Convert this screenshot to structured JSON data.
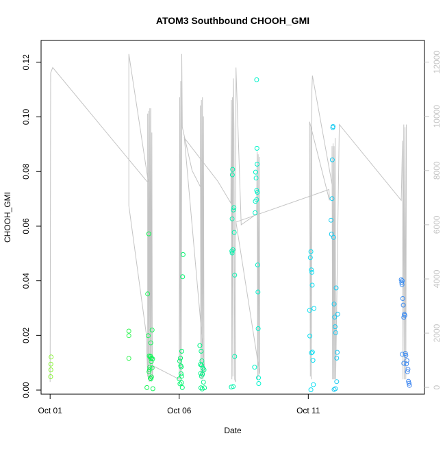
{
  "chart_data": {
    "type": "scatter",
    "title": "ATOM3 Southbound CHOOH_GMI",
    "xlabel": "Date",
    "ylabel": "CHOOH_GMI",
    "x_ticks": [
      "Oct 01",
      "Oct 06",
      "Oct 11"
    ],
    "x_tick_values": [
      0,
      5,
      10
    ],
    "xlim": [
      -0.35,
      14.5
    ],
    "y_ticks": [
      "0.00",
      "0.02",
      "0.04",
      "0.06",
      "0.08",
      "0.10",
      "0.12"
    ],
    "y_tick_values": [
      0,
      0.02,
      0.04,
      0.06,
      0.08,
      0.1,
      0.12
    ],
    "ylim": [
      -0.0015,
      0.128
    ],
    "y2_ticks": [
      "0",
      "2000",
      "4000",
      "6000",
      "8000",
      "10000",
      "12000"
    ],
    "y2_tick_values": [
      0,
      2000,
      4000,
      6000,
      8000,
      10000,
      12000
    ],
    "y2lim": [
      -250,
      12800
    ],
    "grid": false,
    "colors": {
      "line": "#c4c4c4",
      "axis": "#000000",
      "secondary_axis": "#c4c4c4",
      "marker_gradient": [
        "#8cf53a",
        "#00f560",
        "#00f2f2",
        "#3f86f0"
      ]
    },
    "series": [
      {
        "values": [
          [
            0.02,
            0.0049
          ],
          [
            0.03,
            0.0074
          ],
          [
            0.03,
            0.0095
          ],
          [
            0.04,
            0.0121
          ]
        ]
      },
      {
        "values": [
          [
            3.05,
            0.0216
          ],
          [
            3.05,
            0.0199
          ],
          [
            3.05,
            0.0116
          ]
        ]
      },
      {
        "values": [
          [
            3.75,
            0.0009
          ],
          [
            3.78,
            0.0352
          ],
          [
            3.8,
            0.0199
          ],
          [
            3.82,
            0.0572
          ],
          [
            3.83,
            0.0067
          ],
          [
            3.84,
            0.0125
          ],
          [
            3.86,
            0.0084
          ],
          [
            3.87,
            0.0121
          ],
          [
            3.88,
            0.0044
          ],
          [
            3.9,
            0.0173
          ],
          [
            3.9,
            0.0041
          ],
          [
            3.92,
            0.0104
          ],
          [
            3.93,
            0.0117
          ],
          [
            3.95,
            0.022
          ],
          [
            3.95,
            0.0081
          ],
          [
            3.97,
            0.0114
          ],
          [
            3.98,
            0.0005
          ],
          [
            3.85,
            0.0074
          ],
          [
            3.89,
            0.0124
          ],
          [
            3.91,
            0.0115
          ],
          [
            3.93,
            0.0048
          ]
        ]
      },
      {
        "values": [
          [
            5.0,
            0.0041
          ],
          [
            5.02,
            0.0106
          ],
          [
            5.03,
            0.0023
          ],
          [
            5.05,
            0.0117
          ],
          [
            5.07,
            0.006
          ],
          [
            5.08,
            0.0085
          ],
          [
            5.1,
            0.0142
          ],
          [
            5.1,
            0.0051
          ],
          [
            5.12,
            0.0009
          ],
          [
            5.13,
            0.0415
          ],
          [
            5.15,
            0.0496
          ],
          [
            5.06,
            0.0089
          ],
          [
            5.09,
            0.0027
          ]
        ]
      },
      {
        "values": [
          [
            5.8,
            0.0163
          ],
          [
            5.82,
            0.0094
          ],
          [
            5.84,
            0.0008
          ],
          [
            5.85,
            0.0142
          ],
          [
            5.86,
            0.0051
          ],
          [
            5.87,
            0.0091
          ],
          [
            5.88,
            0.0107
          ],
          [
            5.9,
            0.0058
          ],
          [
            5.92,
            0.008
          ],
          [
            5.94,
            0.0029
          ],
          [
            5.96,
            0.0074
          ],
          [
            5.98,
            0.0008
          ],
          [
            5.83,
            0.0061
          ],
          [
            5.89,
            0.0004
          ]
        ]
      },
      {
        "values": [
          [
            7.02,
            0.0011
          ],
          [
            7.04,
            0.0509
          ],
          [
            7.05,
            0.0627
          ],
          [
            7.06,
            0.0788
          ],
          [
            7.07,
            0.0808
          ],
          [
            7.08,
            0.0514
          ],
          [
            7.1,
            0.0659
          ],
          [
            7.12,
            0.0668
          ],
          [
            7.13,
            0.0577
          ],
          [
            7.15,
            0.0421
          ],
          [
            7.15,
            0.0123
          ],
          [
            7.05,
            0.0502
          ],
          [
            7.09,
            0.0013
          ]
        ]
      },
      {
        "values": [
          [
            7.92,
            0.0084
          ],
          [
            7.94,
            0.0649
          ],
          [
            7.95,
            0.0691
          ],
          [
            7.96,
            0.0798
          ],
          [
            7.98,
            0.0776
          ],
          [
            8.0,
            0.0731
          ],
          [
            8.01,
            0.0885
          ],
          [
            8.02,
            0.0827
          ],
          [
            8.03,
            0.0724
          ],
          [
            8.04,
            0.0458
          ],
          [
            8.05,
            0.0359
          ],
          [
            8.06,
            0.0225
          ],
          [
            8.07,
            0.0045
          ],
          [
            8.08,
            0.0024
          ],
          [
            8.0,
            0.1136
          ],
          [
            8.0,
            0.0697
          ]
        ]
      },
      {
        "values": [
          [
            10.05,
            0.0292
          ],
          [
            10.06,
            0.0198
          ],
          [
            10.08,
            0.0485
          ],
          [
            10.1,
            0.0507
          ],
          [
            10.12,
            0.044
          ],
          [
            10.14,
            0.0431
          ],
          [
            10.15,
            0.0384
          ],
          [
            10.16,
            0.0139
          ],
          [
            10.18,
            0.0109
          ],
          [
            10.2,
            0.002
          ],
          [
            10.22,
            0.0299
          ],
          [
            10.1,
            0.0001
          ],
          [
            10.12,
            0.0136
          ]
        ]
      },
      {
        "values": [
          [
            10.88,
            0.0622
          ],
          [
            10.9,
            0.0571
          ],
          [
            10.92,
            0.0701
          ],
          [
            10.93,
            0.0843
          ],
          [
            10.95,
            0.0961
          ],
          [
            10.96,
            0.0965
          ],
          [
            10.98,
            0.0559
          ],
          [
            11.0,
            0.0315
          ],
          [
            11.02,
            0.0267
          ],
          [
            11.04,
            0.0232
          ],
          [
            11.06,
            0.021
          ],
          [
            11.08,
            0.0374
          ],
          [
            11.1,
            0.0117
          ],
          [
            11.12,
            0.0138
          ],
          [
            11.14,
            0.0278
          ],
          [
            11.1,
            0.0031
          ],
          [
            11.0,
            0.0002
          ],
          [
            11.05,
            0.0005
          ]
        ]
      },
      {
        "values": [
          [
            13.6,
            0.0404
          ],
          [
            13.62,
            0.0394
          ],
          [
            13.63,
            0.0386
          ],
          [
            13.64,
            0.04
          ],
          [
            13.66,
            0.0335
          ],
          [
            13.68,
            0.0311
          ],
          [
            13.7,
            0.0266
          ],
          [
            13.72,
            0.0278
          ],
          [
            13.74,
            0.0273
          ],
          [
            13.76,
            0.0134
          ],
          [
            13.78,
            0.0127
          ],
          [
            13.8,
            0.0096
          ],
          [
            13.82,
            0.0108
          ],
          [
            13.84,
            0.0067
          ],
          [
            13.86,
            0.0076
          ],
          [
            13.88,
            0.0032
          ],
          [
            13.9,
            0.0025
          ],
          [
            13.92,
            0.0017
          ],
          [
            13.64,
            0.0131
          ],
          [
            13.7,
            0.0098
          ]
        ]
      }
    ],
    "altitude_track": {
      "note": "",
      "points": [
        [
          0.0,
          200
        ],
        [
          0.02,
          11600
        ],
        [
          0.1,
          11800
        ],
        [
          3.75,
          7600
        ],
        [
          3.8,
          7600
        ],
        [
          3.05,
          12300
        ],
        [
          3.05,
          6700
        ],
        [
          3.72,
          2000
        ],
        [
          3.78,
          400
        ],
        [
          3.78,
          10100
        ],
        [
          3.8,
          300
        ],
        [
          3.82,
          10200
        ],
        [
          3.84,
          200
        ],
        [
          3.86,
          10300
        ],
        [
          3.88,
          300
        ],
        [
          3.9,
          10300
        ],
        [
          3.92,
          200
        ],
        [
          3.94,
          9400
        ],
        [
          3.96,
          300
        ],
        [
          3.98,
          800
        ],
        [
          5.0,
          300
        ],
        [
          5.02,
          10700
        ],
        [
          5.04,
          300
        ],
        [
          5.06,
          11300
        ],
        [
          5.08,
          500
        ],
        [
          5.1,
          12300
        ],
        [
          5.12,
          9600
        ],
        [
          5.5,
          8000
        ],
        [
          5.82,
          7400
        ],
        [
          5.82,
          10400
        ],
        [
          5.84,
          300
        ],
        [
          5.86,
          10600
        ],
        [
          5.88,
          300
        ],
        [
          5.9,
          10700
        ],
        [
          5.92,
          300
        ],
        [
          5.94,
          10000
        ],
        [
          5.96,
          400
        ],
        [
          5.98,
          800
        ],
        [
          5.2,
          9200
        ],
        [
          6.5,
          7600
        ],
        [
          7.0,
          6800
        ],
        [
          7.02,
          10600
        ],
        [
          7.04,
          300
        ],
        [
          7.06,
          10700
        ],
        [
          7.08,
          400
        ],
        [
          7.1,
          11400
        ],
        [
          7.12,
          9600
        ],
        [
          7.15,
          300
        ],
        [
          7.18,
          200
        ],
        [
          7.2,
          11800
        ],
        [
          7.4,
          6000
        ],
        [
          8.0,
          6400
        ],
        [
          8.02,
          8700
        ],
        [
          8.04,
          300
        ],
        [
          8.06,
          8600
        ],
        [
          8.08,
          400
        ],
        [
          8.1,
          8500
        ],
        [
          8.12,
          500
        ],
        [
          7.2,
          6100
        ],
        [
          10.8,
          7300
        ],
        [
          10.82,
          6900
        ],
        [
          10.05,
          9800
        ],
        [
          10.08,
          400
        ],
        [
          10.1,
          9600
        ],
        [
          10.12,
          300
        ],
        [
          10.14,
          11000
        ],
        [
          10.16,
          11500
        ],
        [
          10.2,
          11300
        ],
        [
          10.92,
          7500
        ],
        [
          10.92,
          8900
        ],
        [
          10.94,
          300
        ],
        [
          10.96,
          9000
        ],
        [
          10.98,
          300
        ],
        [
          11.0,
          8900
        ],
        [
          11.02,
          300
        ],
        [
          11.04,
          9200
        ],
        [
          11.06,
          300
        ],
        [
          11.2,
          9700
        ],
        [
          13.6,
          6900
        ],
        [
          13.65,
          9100
        ],
        [
          13.67,
          300
        ],
        [
          13.7,
          9700
        ],
        [
          13.72,
          300
        ],
        [
          13.75,
          9600
        ],
        [
          13.78,
          300
        ],
        [
          13.8,
          9700
        ]
      ]
    }
  }
}
